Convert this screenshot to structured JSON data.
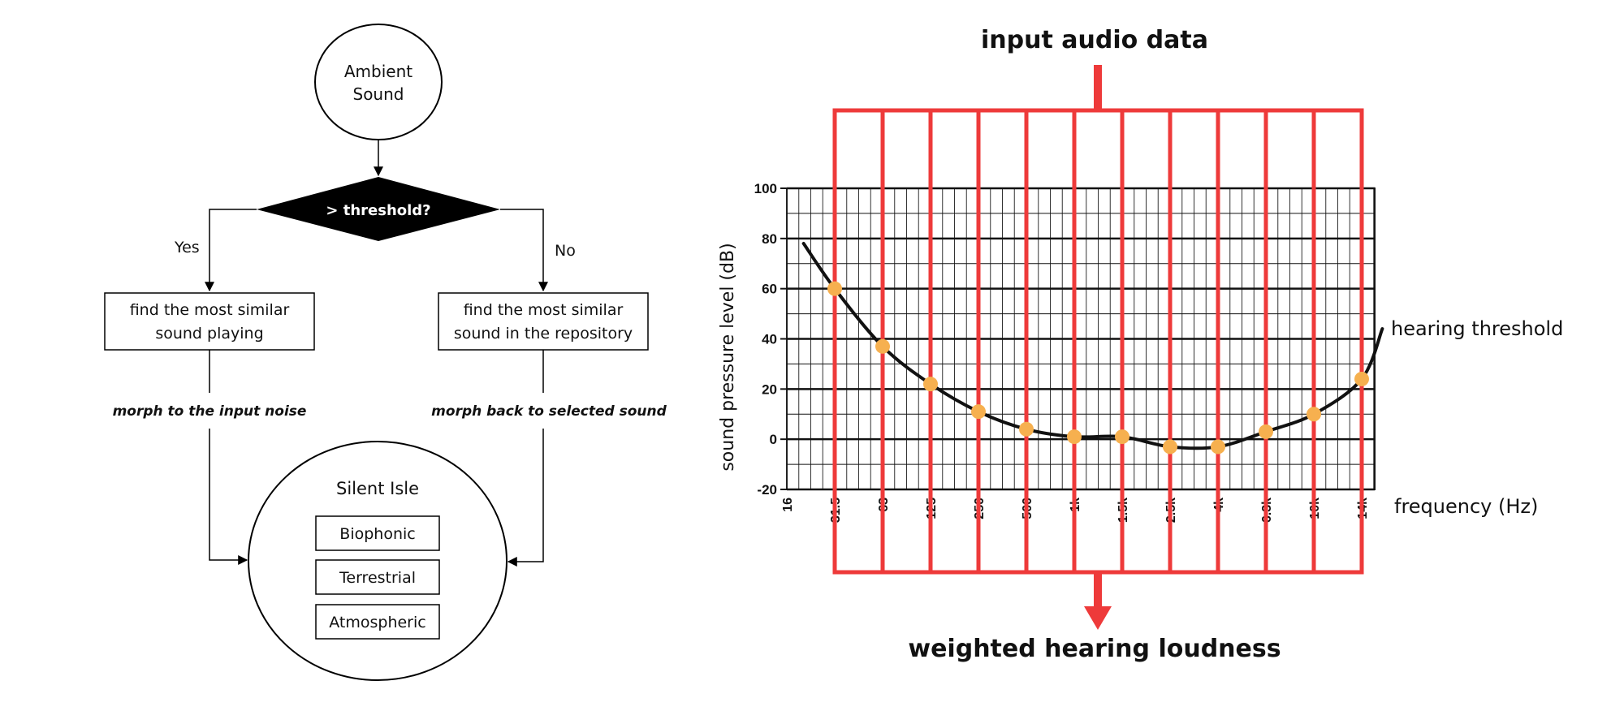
{
  "flowchart": {
    "start_node": {
      "line1": "Ambient",
      "line2": "Sound"
    },
    "decision": "> threshold?",
    "yes_label": "Yes",
    "no_label": "No",
    "left_box": {
      "line1": "find the most similar",
      "line2": "sound playing"
    },
    "right_box": {
      "line1": "find the most similar",
      "line2": "sound in the repository"
    },
    "left_edge_label": "morph to the input noise",
    "right_edge_label": "morph back to selected sound",
    "isle": {
      "title": "Silent Isle",
      "items": [
        "Biophonic",
        "Terrestrial",
        "Atmospheric"
      ]
    }
  },
  "pipeline": {
    "input_label": "input audio data",
    "output_label": "weighted hearing loudness",
    "curve_label": "hearing threshold",
    "accent_color": "#ee3a3a",
    "marker_color": "#f6b04f"
  },
  "chart_data": {
    "type": "line",
    "xlabel": "frequency (Hz)",
    "ylabel": "sound pressure level (dB)",
    "ylim": [
      -20,
      100
    ],
    "yticks": [
      "100",
      "80",
      "60",
      "40",
      "20",
      "0",
      "-20"
    ],
    "xticks": [
      "16",
      "31.5",
      "63",
      "125",
      "250",
      "500",
      "1k",
      "1.5k",
      "2.5k",
      "4k",
      "6.3k",
      "10k",
      "14k"
    ],
    "grid": true,
    "series": [
      {
        "name": "hearing threshold",
        "x": [
          "31.5",
          "63",
          "125",
          "250",
          "500",
          "1k",
          "1.5k",
          "2.5k",
          "4k",
          "6.3k",
          "10k",
          "14k"
        ],
        "values": [
          60,
          37,
          22,
          11,
          4,
          1,
          1,
          -3,
          -3,
          3,
          10,
          24
        ]
      }
    ]
  }
}
